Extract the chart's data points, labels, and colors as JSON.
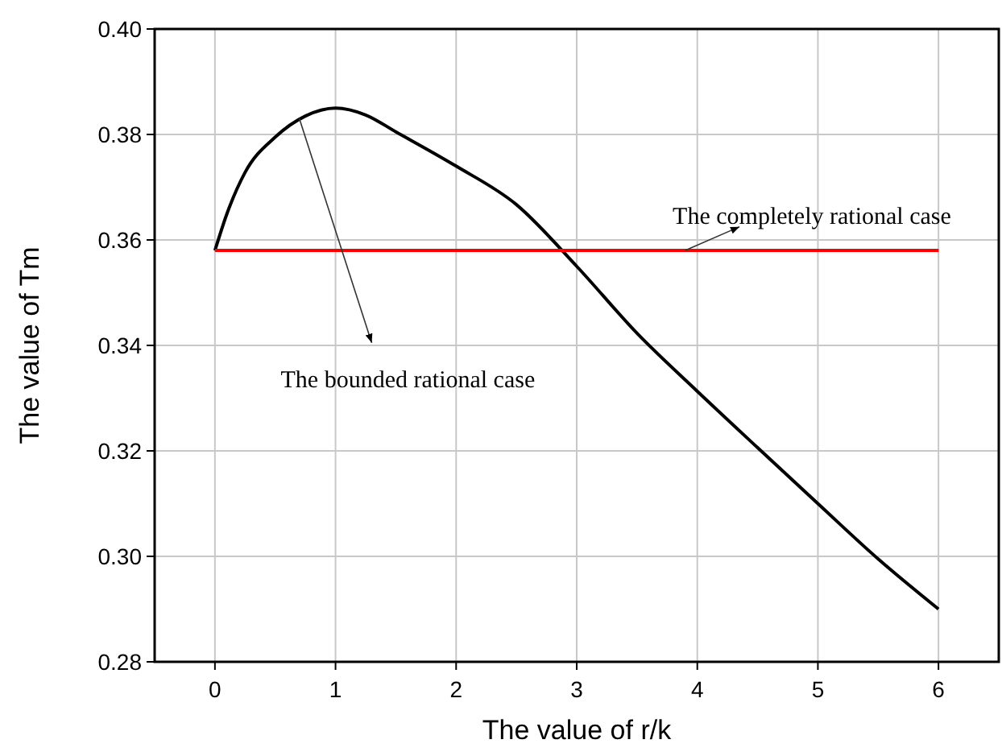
{
  "chart_data": {
    "type": "line",
    "xlabel": "The value of r/k",
    "ylabel": "The value of Tm",
    "xlim": [
      -0.5,
      6.5
    ],
    "ylim": [
      0.28,
      0.4
    ],
    "xticks": [
      0,
      1,
      2,
      3,
      4,
      5,
      6
    ],
    "yticks": [
      0.28,
      {
        "value": 0.3,
        "label": "0.30"
      },
      0.32,
      0.34,
      0.36,
      0.38,
      {
        "value": 0.4,
        "label": "0.40"
      }
    ],
    "grid": true,
    "series": [
      {
        "color": "#000000",
        "x": [
          0,
          0.1,
          0.25,
          0.5,
          0.75,
          1,
          1.25,
          1.5,
          2,
          2.5,
          3,
          3.5,
          4,
          4.5,
          5,
          5.5,
          6
        ],
        "values": [
          0.358,
          0.365,
          0.3728,
          0.3795,
          0.3835,
          0.385,
          0.3837,
          0.3805,
          0.374,
          0.3667,
          0.355,
          0.3423,
          0.3313,
          0.3206,
          0.31,
          0.2995,
          0.29
        ]
      },
      {
        "color": "#ff0000",
        "x": [
          0,
          6
        ],
        "values": [
          0.358,
          0.358
        ]
      }
    ],
    "annotations": [
      {
        "text": "The completely rational case",
        "x": 3.9,
        "y": 0.358
      },
      {
        "text": "The bounded rational case",
        "x": 0.7,
        "y": 0.383
      }
    ]
  }
}
